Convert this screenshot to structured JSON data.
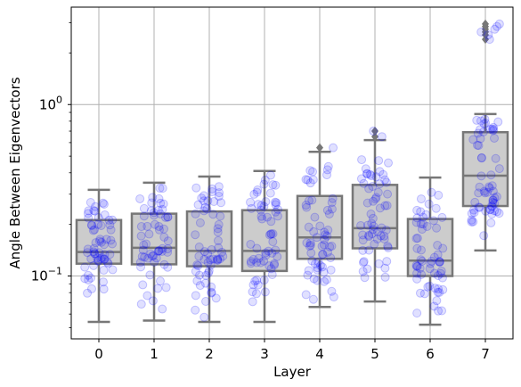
{
  "chart_data": {
    "type": "box",
    "xlabel": "Layer",
    "ylabel": "Angle Between Eigenvectors",
    "yscale": "log",
    "ylim": [
      0.043,
      3.7
    ],
    "grid": true,
    "categories": [
      "0",
      "1",
      "2",
      "3",
      "4",
      "5",
      "6",
      "7"
    ],
    "y_major_ticks": [
      {
        "value": 0.1,
        "base": "10",
        "exp": "−1"
      },
      {
        "value": 1.0,
        "base": "10",
        "exp": "0"
      }
    ],
    "boxes": [
      {
        "category": "0",
        "whisker_low": 0.054,
        "q1": 0.118,
        "median": 0.138,
        "q3": 0.212,
        "whisker_high": 0.318,
        "outliers": []
      },
      {
        "category": "1",
        "whisker_low": 0.055,
        "q1": 0.117,
        "median": 0.146,
        "q3": 0.231,
        "whisker_high": 0.35,
        "outliers": []
      },
      {
        "category": "2",
        "whisker_low": 0.054,
        "q1": 0.114,
        "median": 0.14,
        "q3": 0.238,
        "whisker_high": 0.38,
        "outliers": []
      },
      {
        "category": "3",
        "whisker_low": 0.054,
        "q1": 0.107,
        "median": 0.14,
        "q3": 0.242,
        "whisker_high": 0.41,
        "outliers": []
      },
      {
        "category": "4",
        "whisker_low": 0.066,
        "q1": 0.126,
        "median": 0.168,
        "q3": 0.293,
        "whisker_high": 0.53,
        "outliers": [
          0.56
        ]
      },
      {
        "category": "5",
        "whisker_low": 0.071,
        "q1": 0.145,
        "median": 0.19,
        "q3": 0.34,
        "whisker_high": 0.62,
        "outliers": [
          0.65,
          0.7
        ]
      },
      {
        "category": "6",
        "whisker_low": 0.052,
        "q1": 0.1,
        "median": 0.123,
        "q3": 0.215,
        "whisker_high": 0.375,
        "outliers": []
      },
      {
        "category": "7",
        "whisker_low": 0.141,
        "q1": 0.256,
        "median": 0.385,
        "q3": 0.69,
        "whisker_high": 0.88,
        "outliers": [
          2.4,
          2.55,
          2.65,
          2.75,
          2.85,
          2.95
        ]
      }
    ],
    "points_per_layer": 60,
    "colors": {
      "box_fill": "#cccccc",
      "box_edge": "#777777",
      "points": "#0000ff",
      "grid": "#b0b0b0",
      "axis": "#000000"
    }
  }
}
